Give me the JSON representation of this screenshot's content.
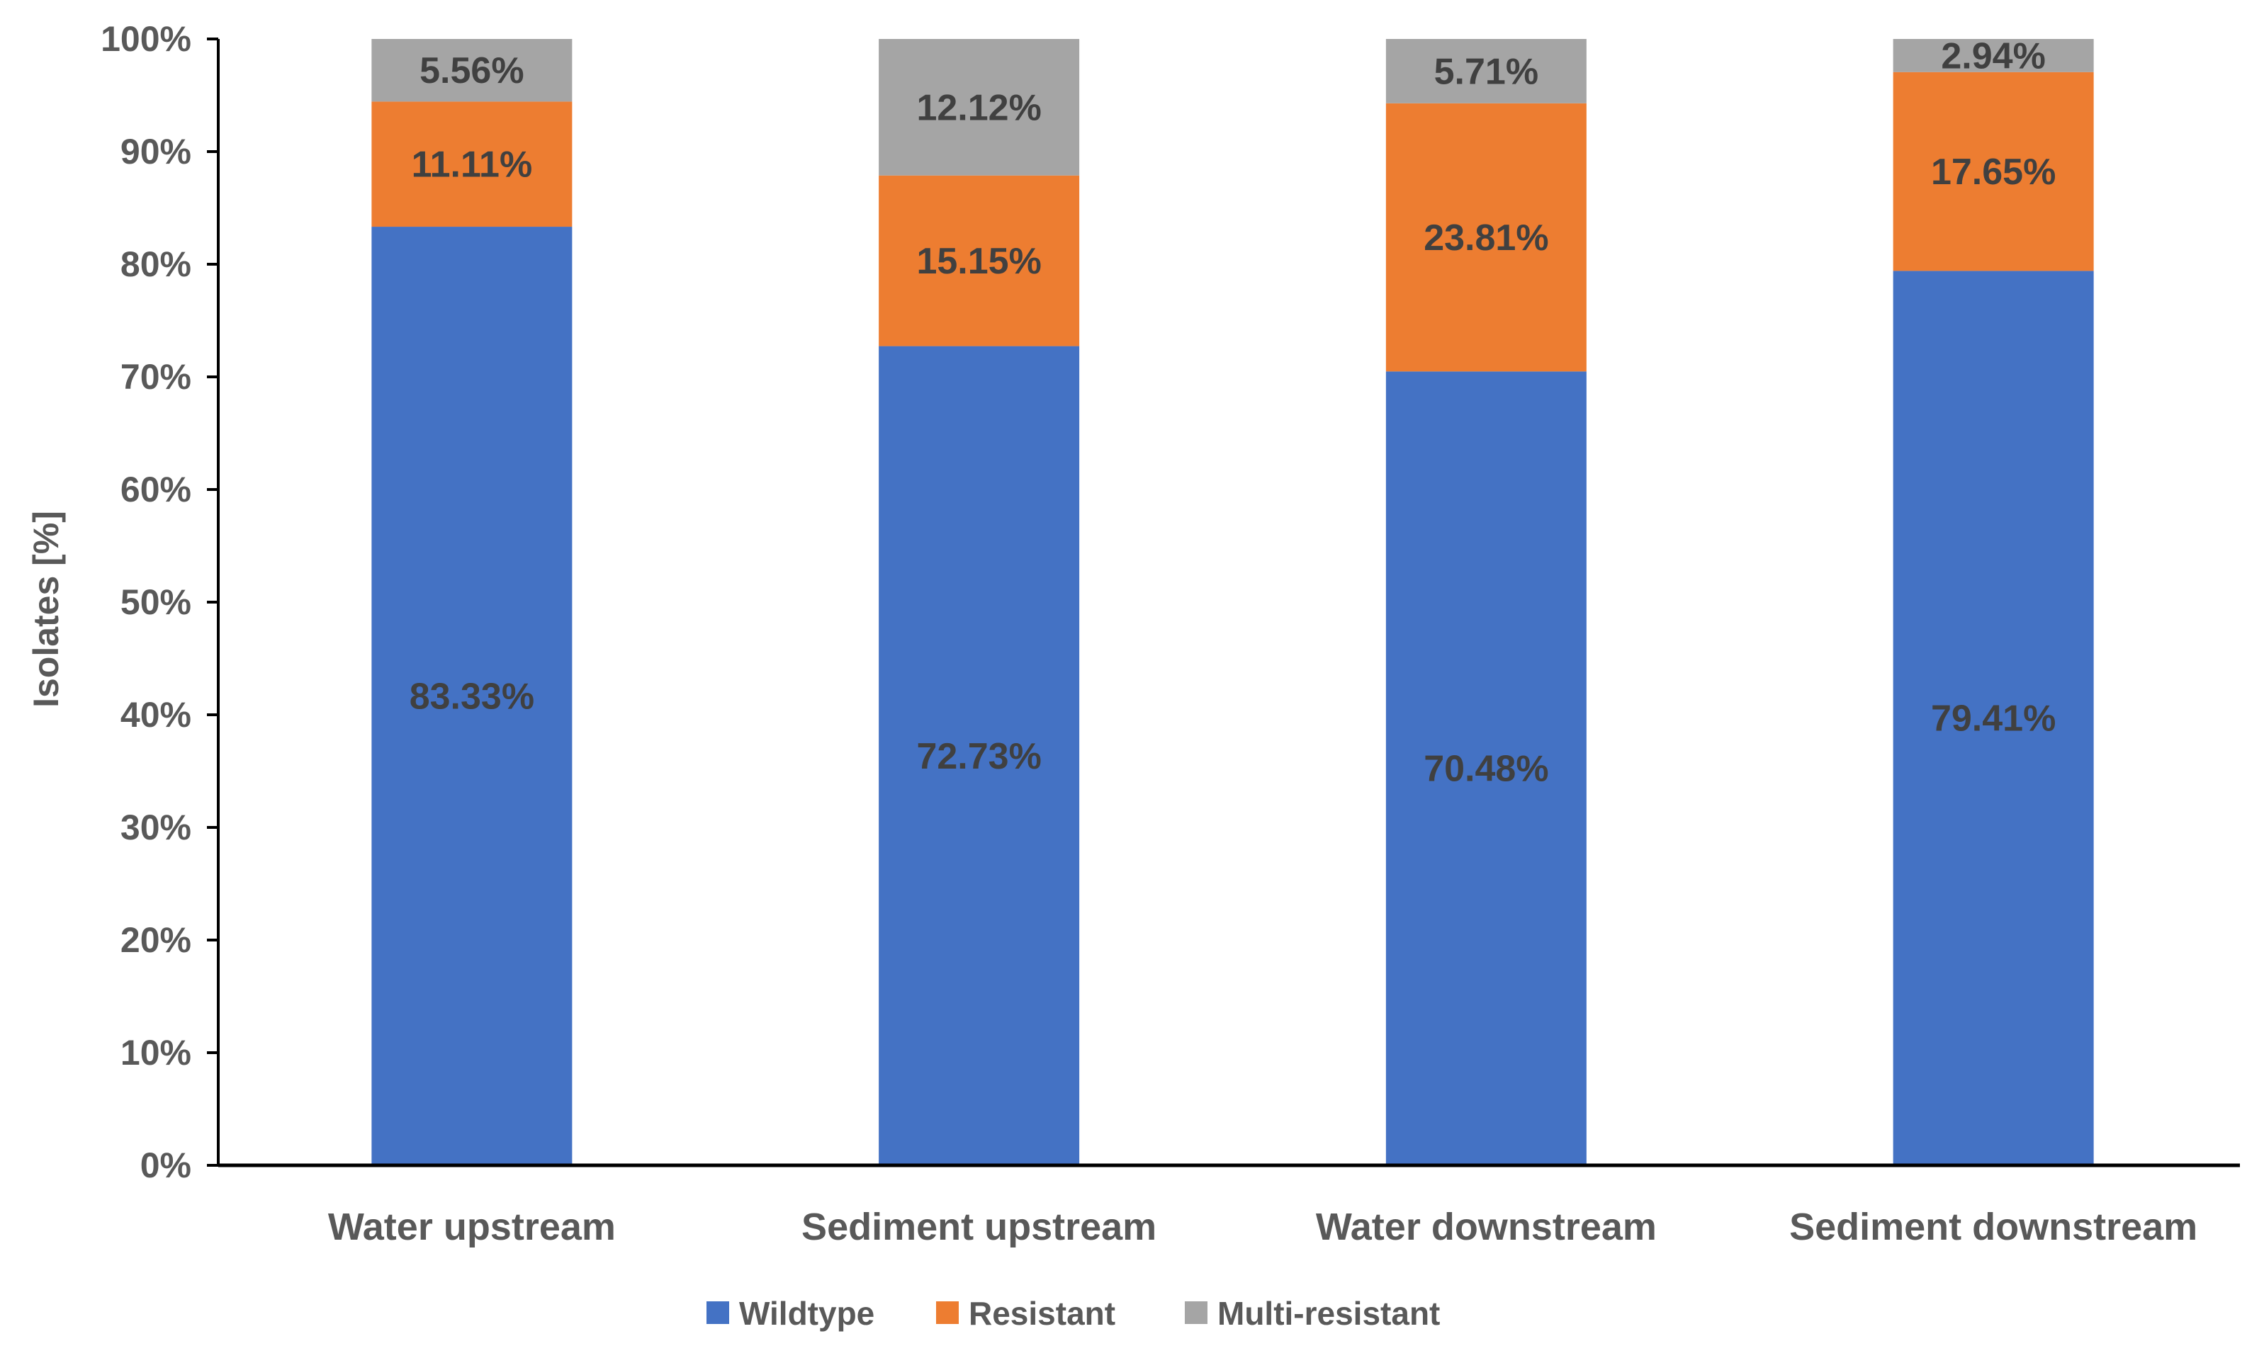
{
  "chart_data": {
    "type": "bar",
    "stacked": true,
    "title": "",
    "xlabel": "",
    "ylabel": "Isolates [%]",
    "ylim": [
      0,
      100
    ],
    "yticks": [
      0,
      10,
      20,
      30,
      40,
      50,
      60,
      70,
      80,
      90,
      100
    ],
    "ytick_labels": [
      "0%",
      "10%",
      "20%",
      "30%",
      "40%",
      "50%",
      "60%",
      "70%",
      "80%",
      "90%",
      "100%"
    ],
    "categories": [
      "Water upstream",
      "Sediment upstream",
      "Water downstream",
      "Sediment downstream"
    ],
    "series": [
      {
        "name": "Wildtype",
        "color": "#4472C4",
        "values": [
          83.33,
          72.73,
          70.48,
          79.41
        ],
        "labels": [
          "83.33%",
          "72.73%",
          "70.48%",
          "79.41%"
        ]
      },
      {
        "name": "Resistant",
        "color": "#ED7D31",
        "values": [
          11.11,
          15.15,
          23.81,
          17.65
        ],
        "labels": [
          "11.11%",
          "15.15%",
          "23.81%",
          "17.65%"
        ]
      },
      {
        "name": "Multi-resistant",
        "color": "#A5A5A5",
        "values": [
          5.56,
          12.12,
          5.71,
          2.94
        ],
        "labels": [
          "5.56%",
          "12.12%",
          "5.71%",
          "2.94%"
        ]
      }
    ],
    "grid": false,
    "legend_position": "bottom-center"
  },
  "colors": {
    "axis": "#000000",
    "tick_text": "#595959",
    "data_label_text": "#404040"
  }
}
